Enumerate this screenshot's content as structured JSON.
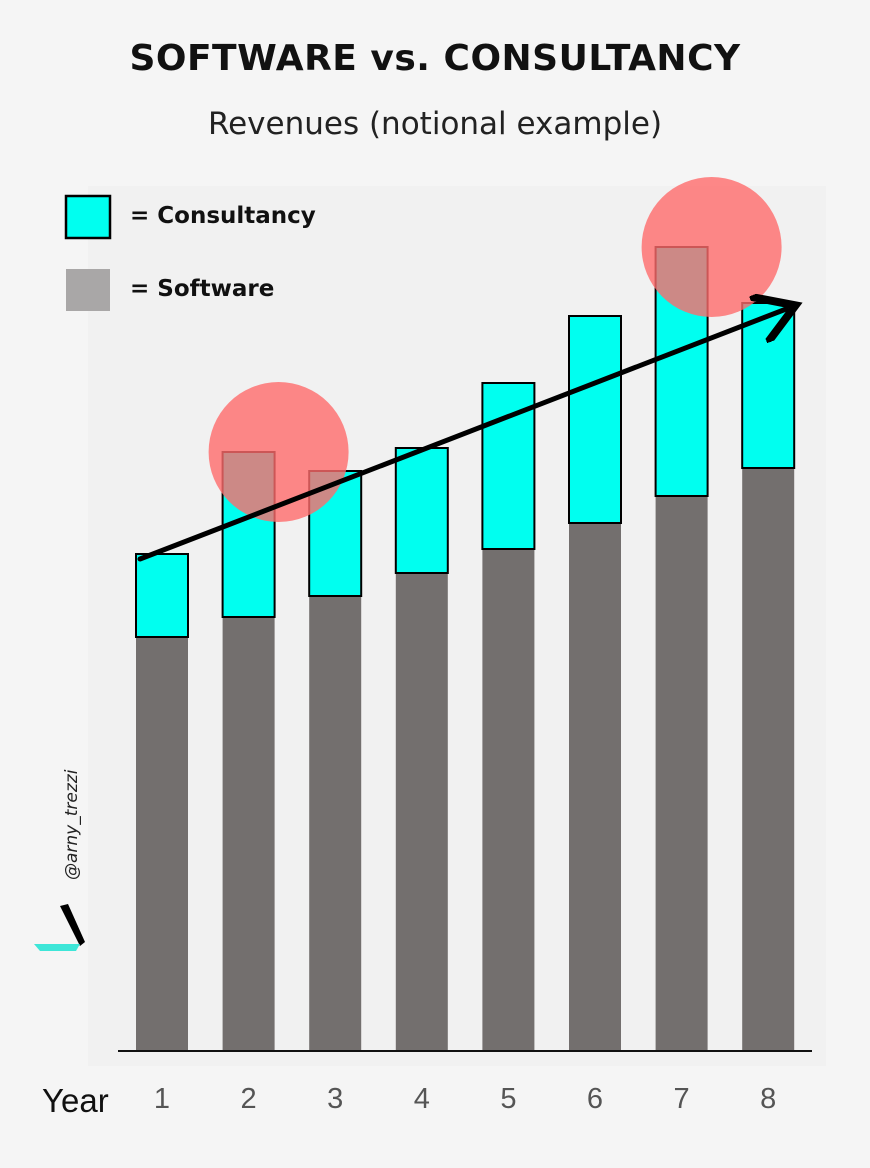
{
  "chart_data": {
    "type": "bar",
    "stacked": true,
    "title": "SOFTWARE vs. CONSULTANCY",
    "subtitle": "Revenues (notional example)",
    "xlabel": "Year",
    "categories": [
      "1",
      "2",
      "3",
      "4",
      "5",
      "6",
      "7",
      "8"
    ],
    "series": [
      {
        "name": "Software",
        "color": "#736f6e",
        "values": [
          414,
          434,
          455,
          478,
          502,
          528,
          555,
          583
        ]
      },
      {
        "name": "Consultancy",
        "color": "#00fff0",
        "values": [
          83,
          165,
          125,
          125,
          166,
          207,
          249,
          165
        ]
      }
    ],
    "ylim": [
      0,
      880
    ],
    "y_axis_shown": false,
    "legend": {
      "position": "top-left",
      "items": [
        {
          "label": "= Consultancy",
          "swatch_color": "#00fff0"
        },
        {
          "label": "=  Software",
          "swatch_color": "#a9a7a7"
        }
      ]
    },
    "annotations": [
      {
        "type": "highlight-circle",
        "category": "2",
        "color": "#ff6b6b"
      },
      {
        "type": "highlight-circle",
        "category": "7",
        "color": "#ff6b6b"
      },
      {
        "type": "trend-arrow",
        "from_category": "1",
        "to_category": "8",
        "color": "#000000"
      }
    ]
  },
  "watermark": {
    "handle": "@arny_trezzi",
    "logo_icon": "brush-stroke-logo-icon"
  }
}
